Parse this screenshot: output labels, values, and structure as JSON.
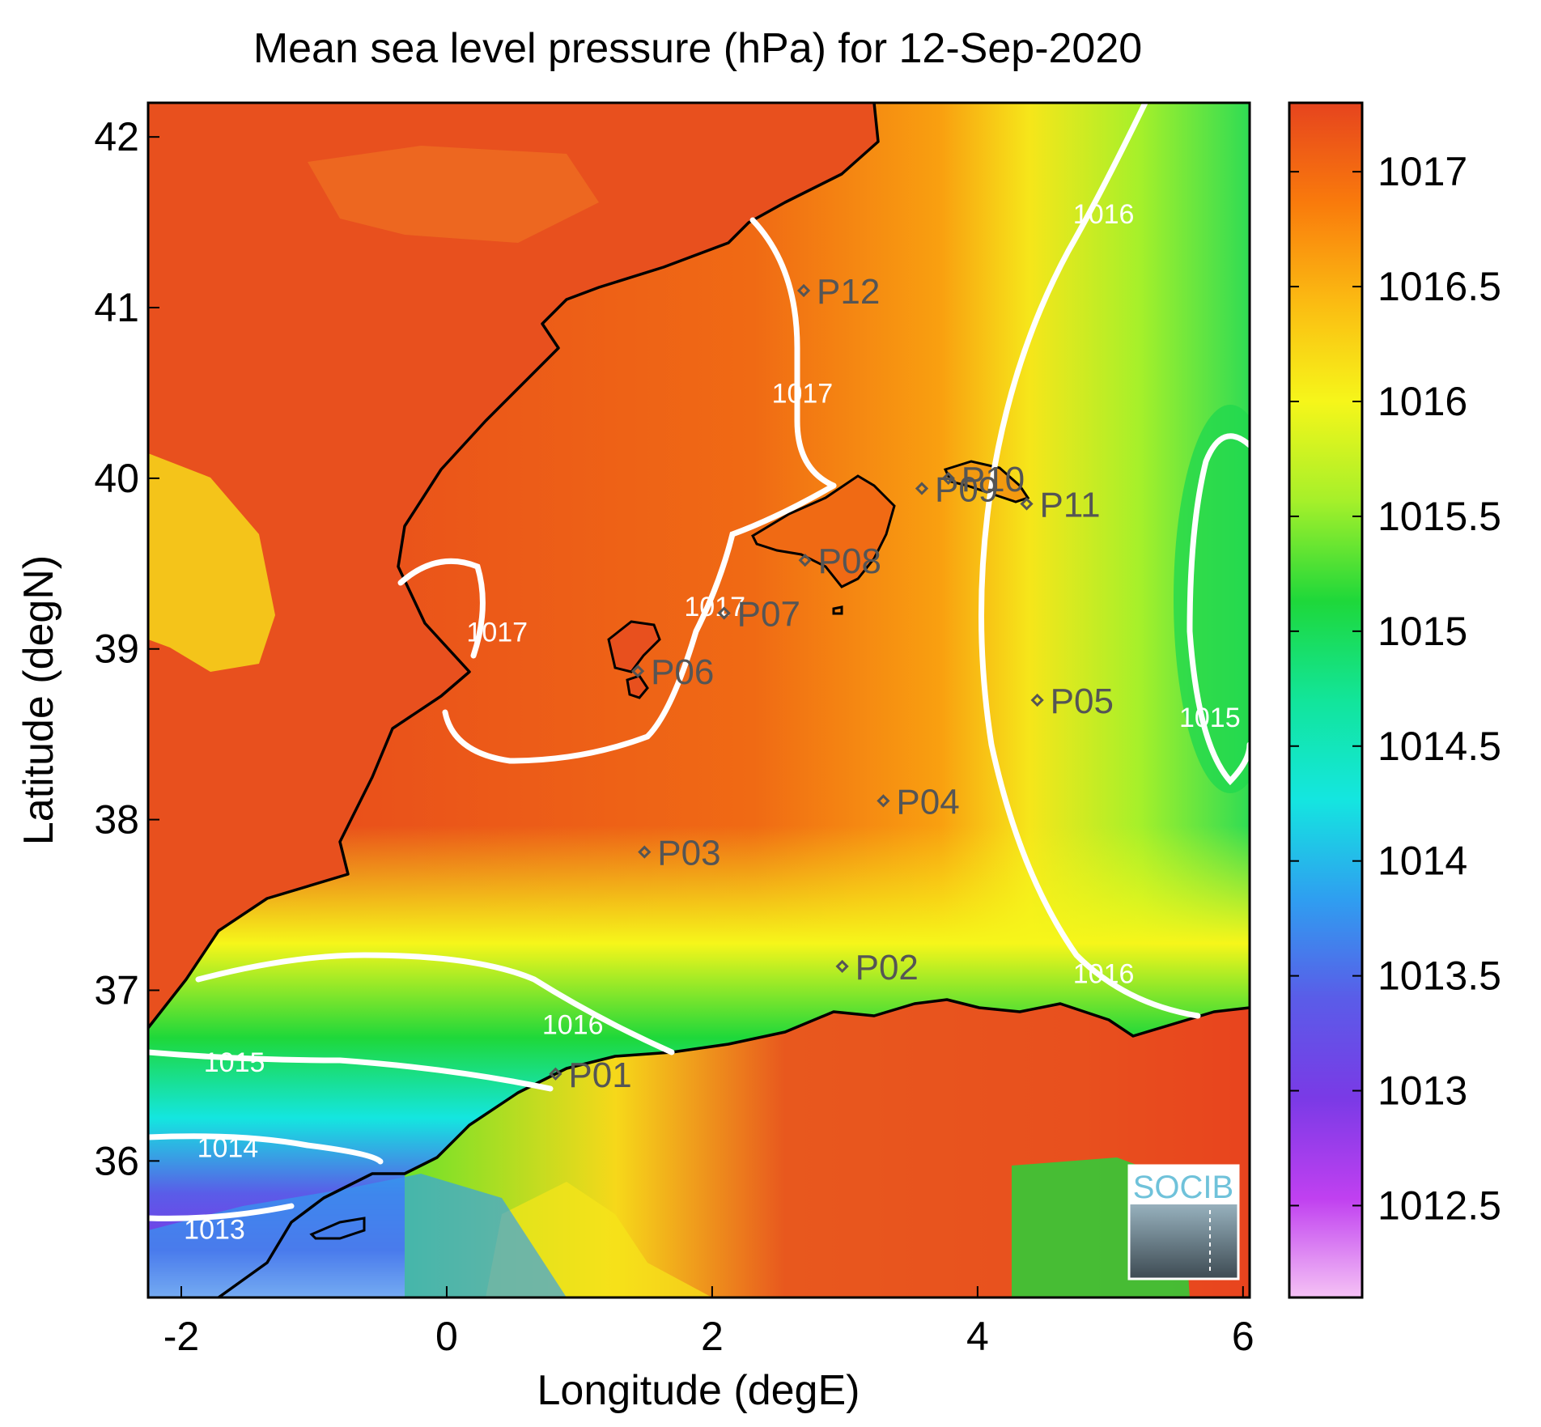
{
  "title": "Mean sea level pressure (hPa) for 12-Sep-2020",
  "x_axis": {
    "label": "Longitude (degE)",
    "ticks": [
      {
        "value": -2,
        "label": "-2"
      },
      {
        "value": 0,
        "label": "0"
      },
      {
        "value": 2,
        "label": "2"
      },
      {
        "value": 4,
        "label": "4"
      },
      {
        "value": 6,
        "label": "6"
      }
    ],
    "range": [
      -2.25,
      6.05
    ]
  },
  "y_axis": {
    "label": "Latitude (degN)",
    "ticks": [
      {
        "value": 36,
        "label": "36"
      },
      {
        "value": 37,
        "label": "37"
      },
      {
        "value": 38,
        "label": "38"
      },
      {
        "value": 39,
        "label": "39"
      },
      {
        "value": 40,
        "label": "40"
      },
      {
        "value": 41,
        "label": "41"
      },
      {
        "value": 42,
        "label": "42"
      }
    ],
    "range": [
      35.2,
      42.2
    ]
  },
  "colorbar": {
    "range": [
      1012.1,
      1017.3
    ],
    "ticks": [
      {
        "value": 1012.5,
        "label": "1012.5"
      },
      {
        "value": 1013,
        "label": "1013"
      },
      {
        "value": 1013.5,
        "label": "1013.5"
      },
      {
        "value": 1014,
        "label": "1014"
      },
      {
        "value": 1014.5,
        "label": "1014.5"
      },
      {
        "value": 1015,
        "label": "1015"
      },
      {
        "value": 1015.5,
        "label": "1015.5"
      },
      {
        "value": 1016,
        "label": "1016"
      },
      {
        "value": 1016.5,
        "label": "1016.5"
      },
      {
        "value": 1017,
        "label": "1017"
      }
    ],
    "colormap": [
      "#f5c2f5",
      "#c040f0",
      "#7a3ae6",
      "#5a5ce8",
      "#2f9ef0",
      "#14e6e0",
      "#12e59a",
      "#1ed83a",
      "#a6f02a",
      "#f6f61a",
      "#fbbb12",
      "#f97a0c",
      "#e6441e"
    ]
  },
  "contour_labels": [
    {
      "text": "1017",
      "lon": 2.68,
      "lat": 40.5
    },
    {
      "text": "1017",
      "lon": 0.38,
      "lat": 39.1
    },
    {
      "text": "1017",
      "lon": 2.02,
      "lat": 39.25
    },
    {
      "text": "1016",
      "lon": 4.95,
      "lat": 41.55
    },
    {
      "text": "1016",
      "lon": 4.95,
      "lat": 37.1
    },
    {
      "text": "1016",
      "lon": 0.95,
      "lat": 36.8
    },
    {
      "text": "1015",
      "lon": -1.6,
      "lat": 36.58
    },
    {
      "text": "1015",
      "lon": 5.75,
      "lat": 38.6
    },
    {
      "text": "1014",
      "lon": -1.65,
      "lat": 36.08
    },
    {
      "text": "1013",
      "lon": -1.75,
      "lat": 35.6
    }
  ],
  "points": [
    {
      "label": "P01",
      "lon": 0.82,
      "lat": 36.51
    },
    {
      "label": "P02",
      "lon": 2.98,
      "lat": 37.14
    },
    {
      "label": "P03",
      "lon": 1.49,
      "lat": 37.81
    },
    {
      "label": "P04",
      "lon": 3.29,
      "lat": 38.11
    },
    {
      "label": "P05",
      "lon": 4.45,
      "lat": 38.7
    },
    {
      "label": "P06",
      "lon": 1.44,
      "lat": 38.87
    },
    {
      "label": "P07",
      "lon": 2.09,
      "lat": 39.21
    },
    {
      "label": "P08",
      "lon": 2.7,
      "lat": 39.52
    },
    {
      "label": "P09",
      "lon": 3.58,
      "lat": 39.94
    },
    {
      "label": "P10",
      "lon": 3.78,
      "lat": 40.0
    },
    {
      "label": "P11",
      "lon": 4.37,
      "lat": 39.85
    },
    {
      "label": "P12",
      "lon": 2.69,
      "lat": 41.1
    }
  ],
  "logo": {
    "text": "SOCIB"
  },
  "colors": {
    "land_orange": "#e8581e",
    "coastline": "#000000",
    "contour": "#ffffff",
    "marker": "#555555"
  }
}
